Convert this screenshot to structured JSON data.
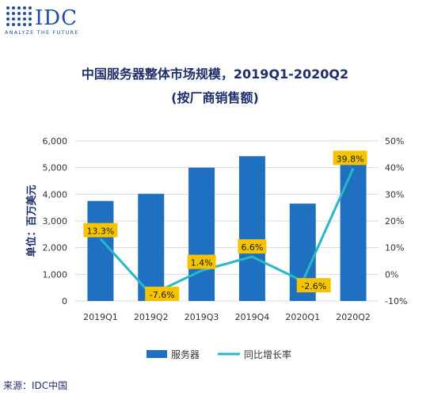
{
  "logo": {
    "brand": "IDC",
    "tagline": "ANALYZE THE FUTURE"
  },
  "colors": {
    "bar": "#1f70c1",
    "line": "#2ab7c6",
    "label_bg": "#f5c400",
    "text": "#1e2f6b"
  },
  "chart_data": {
    "type": "bar",
    "title": "中国服务器整体市场规模，2019Q1-2020Q2",
    "subtitle": "(按厂商销售额)",
    "ylabel": "单位：百万美元",
    "categories": [
      "2019Q1",
      "2019Q2",
      "2019Q3",
      "2019Q4",
      "2020Q1",
      "2020Q2"
    ],
    "ylim": [
      0,
      6000
    ],
    "yticks": [
      "0",
      "1,000",
      "2,000",
      "3,000",
      "4,000",
      "5,000",
      "6,000"
    ],
    "y2lim": [
      -10,
      50
    ],
    "y2ticks": [
      "-10%",
      "0%",
      "10%",
      "20%",
      "30%",
      "40%",
      "50%"
    ],
    "grid": true,
    "legend_position": "bottom",
    "series": [
      {
        "name": "服务器",
        "type": "bar",
        "axis": "left",
        "values": [
          3750,
          4020,
          5000,
          5430,
          3650,
          5620
        ]
      },
      {
        "name": "同比增长率",
        "type": "line",
        "axis": "right",
        "values": [
          13.3,
          -7.6,
          1.4,
          6.6,
          -2.6,
          39.8
        ],
        "labels": [
          "13.3%",
          "-7.6%",
          "1.4%",
          "6.6%",
          "-2.6%",
          "39.8%"
        ]
      }
    ]
  },
  "source": "来源：IDC中国"
}
